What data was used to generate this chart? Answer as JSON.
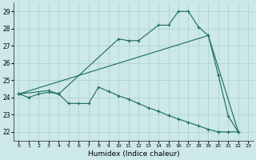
{
  "xlabel": "Humidex (Indice chaleur)",
  "bg_color": "#cce8e8",
  "line_color": "#1a6b5a",
  "grid_color": "#aacfcf",
  "xlim": [
    -0.5,
    23.5
  ],
  "ylim": [
    21.5,
    29.5
  ],
  "yticks": [
    22,
    23,
    24,
    25,
    26,
    27,
    28,
    29
  ],
  "xticks": [
    0,
    1,
    2,
    3,
    4,
    5,
    6,
    7,
    8,
    9,
    10,
    11,
    12,
    13,
    14,
    15,
    16,
    17,
    18,
    19,
    20,
    21,
    22,
    23
  ],
  "line1_x": [
    0,
    1,
    2,
    3,
    4,
    5,
    6,
    7,
    8,
    9,
    10,
    11,
    12,
    13,
    14,
    15,
    16,
    17,
    18,
    19,
    20,
    21,
    22
  ],
  "line1_y": [
    24.2,
    24.0,
    24.2,
    24.3,
    24.2,
    23.65,
    23.65,
    23.65,
    24.6,
    24.35,
    24.1,
    23.9,
    23.65,
    23.4,
    23.2,
    22.95,
    22.75,
    22.55,
    22.35,
    22.15,
    22.0,
    22.0,
    22.0
  ],
  "line2_x": [
    0,
    3,
    4,
    10,
    11,
    12,
    14,
    15,
    16,
    17,
    18,
    19,
    20,
    21,
    22
  ],
  "line2_y": [
    24.2,
    24.4,
    24.2,
    27.4,
    27.3,
    27.3,
    28.2,
    28.2,
    29.0,
    29.0,
    28.1,
    27.6,
    25.3,
    22.9,
    22.0
  ],
  "line3_x": [
    0,
    19,
    22
  ],
  "line3_y": [
    24.2,
    27.6,
    22.0
  ]
}
